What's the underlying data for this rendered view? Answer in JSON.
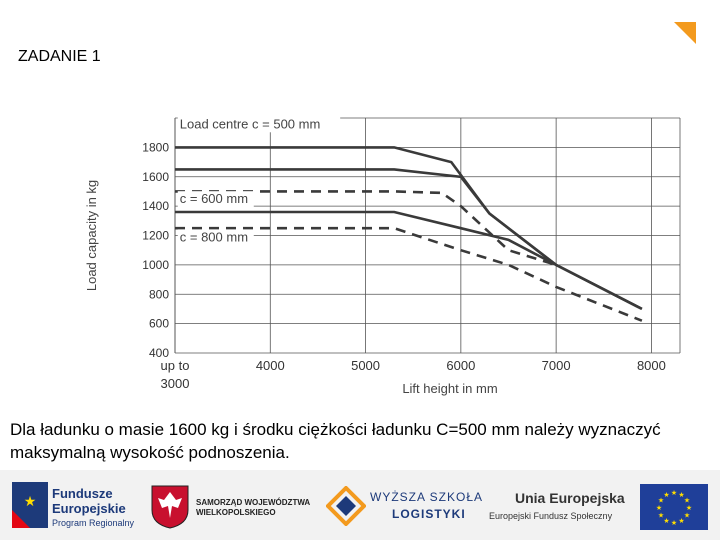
{
  "slide": {
    "title": "ZADANIE 1",
    "task_text": "Dla ładunku o masie 1600 kg i środku ciężkości ładunku C=500 mm należy wyznaczyć maksymalną wysokość podnoszenia."
  },
  "footer": {
    "fundusze_line1": "Fundusze",
    "fundusze_line2": "Europejskie",
    "fundusze_sub": "Program Regionalny",
    "samorzad_line1": "SAMORZĄD WOJEWÓDZTWA",
    "samorzad_line2": "WIELKOPOLSKIEGO",
    "wsl_line1": "WYŻSZA SZKOŁA",
    "wsl_line2": "LOGISTYKI",
    "ue_title": "Unia Europejska",
    "ue_sub": "Europejski Fundusz Społeczny"
  },
  "colors": {
    "accent": "#f39a1e",
    "curve": "#3a3a3a",
    "grid": "#555555",
    "eu_blue": "#1f3f99",
    "eu_star": "#ffdd00"
  },
  "chart_data": {
    "type": "line",
    "xlabel": "Lift height in mm",
    "ylabel": "Load capacity in kg",
    "x_ticks": [
      {
        "value": 3000,
        "label": "up to\n3000"
      },
      {
        "value": 4000,
        "label": "4000"
      },
      {
        "value": 5000,
        "label": "5000"
      },
      {
        "value": 6000,
        "label": "6000"
      },
      {
        "value": 7000,
        "label": "7000"
      },
      {
        "value": 8000,
        "label": "8000"
      }
    ],
    "y_ticks": [
      400,
      600,
      800,
      1000,
      1200,
      1400,
      1600,
      1800
    ],
    "xlim": [
      3000,
      8300
    ],
    "ylim": [
      400,
      2000
    ],
    "grid": true,
    "annotations": [
      {
        "text": "Load centre c = 500 mm",
        "x": 3050,
        "y": 1930
      },
      {
        "text": "c = 600 mm",
        "x": 3050,
        "y": 1420
      },
      {
        "text": "c = 800 mm",
        "x": 3050,
        "y": 1160
      }
    ],
    "series": [
      {
        "style": "solid",
        "points": [
          [
            3000,
            1800
          ],
          [
            5300,
            1800
          ],
          [
            5900,
            1700
          ],
          [
            6300,
            1350
          ],
          [
            7000,
            1000
          ]
        ]
      },
      {
        "style": "solid",
        "points": [
          [
            3000,
            1650
          ],
          [
            5300,
            1650
          ],
          [
            6000,
            1600
          ],
          [
            6300,
            1350
          ],
          [
            7000,
            1000
          ],
          [
            7900,
            700
          ]
        ]
      },
      {
        "style": "dashed",
        "points": [
          [
            3000,
            1500
          ],
          [
            5300,
            1500
          ],
          [
            5800,
            1490
          ],
          [
            6000,
            1400
          ],
          [
            6500,
            1100
          ],
          [
            7000,
            1000
          ]
        ]
      },
      {
        "style": "solid",
        "points": [
          [
            3000,
            1360
          ],
          [
            5300,
            1360
          ],
          [
            6000,
            1250
          ],
          [
            6500,
            1170
          ],
          [
            7000,
            1000
          ],
          [
            7900,
            700
          ]
        ]
      },
      {
        "style": "dashed",
        "points": [
          [
            3000,
            1250
          ],
          [
            5300,
            1250
          ],
          [
            6000,
            1100
          ],
          [
            6500,
            1000
          ],
          [
            7000,
            850
          ],
          [
            7900,
            620
          ]
        ]
      }
    ]
  }
}
